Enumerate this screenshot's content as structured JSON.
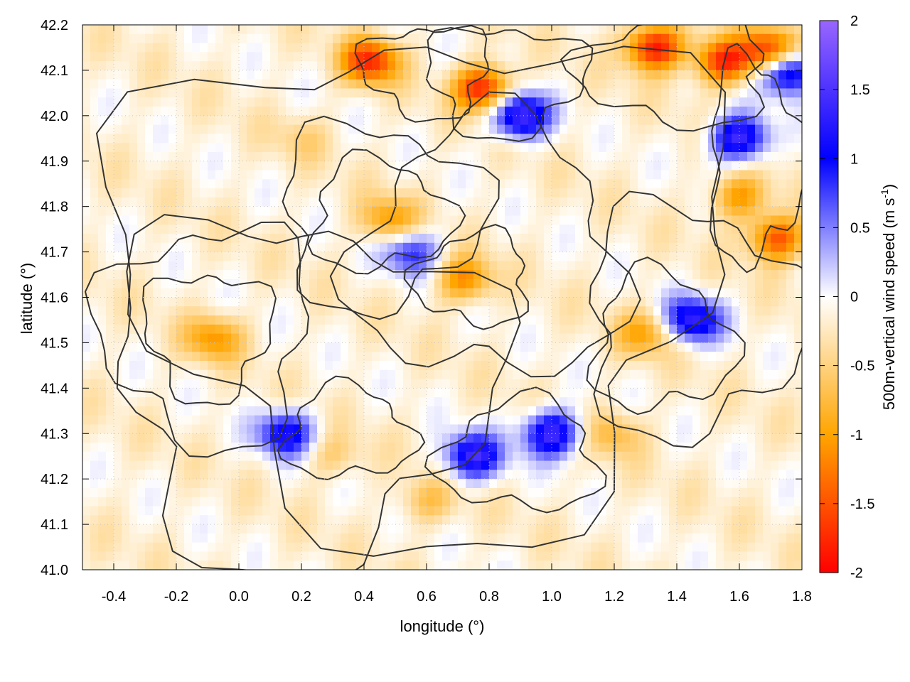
{
  "chart_data": {
    "type": "heatmap",
    "title": "",
    "xlabel": "longitude (°)",
    "ylabel": "latitude (°)",
    "colorbar_label_main": "500m-vertical wind speed (m s",
    "colorbar_label_sup": "-1",
    "colorbar_label_end": ")",
    "xlim": [
      -0.5,
      1.8
    ],
    "ylim": [
      41.0,
      42.2
    ],
    "clim": [
      -2,
      2
    ],
    "x_ticks": [
      -0.4,
      -0.2,
      0.0,
      0.2,
      0.4,
      0.6,
      0.8,
      1.0,
      1.2,
      1.4,
      1.6,
      1.8
    ],
    "x_tick_labels": [
      "-0.4",
      "-0.2",
      "0.0",
      "0.2",
      "0.4",
      "0.6",
      "0.8",
      "1.0",
      "1.2",
      "1.4",
      "1.6",
      "1.8"
    ],
    "y_ticks": [
      41.0,
      41.1,
      41.2,
      41.3,
      41.4,
      41.5,
      41.6,
      41.7,
      41.8,
      41.9,
      42.0,
      42.1,
      42.2
    ],
    "y_tick_labels": [
      "41.0",
      "41.1",
      "41.2",
      "41.3",
      "41.4",
      "41.5",
      "41.6",
      "41.7",
      "41.8",
      "41.9",
      "42.0",
      "42.1",
      "42.2"
    ],
    "colorbar_ticks": [
      2,
      1.5,
      1,
      0.5,
      0,
      -0.5,
      -1,
      -1.5,
      -2
    ],
    "colorbar_tick_labels": [
      "2",
      "1.5",
      "1",
      "0.5",
      "0",
      "-0.5",
      "-1",
      "-1.5",
      "-2"
    ],
    "colormap": [
      {
        "value": -2.0,
        "color": "#ff0000"
      },
      {
        "value": -1.0,
        "color": "#ffa500"
      },
      {
        "value": 0.0,
        "color": "#ffffff"
      },
      {
        "value": 1.0,
        "color": "#0000ff"
      },
      {
        "value": 2.0,
        "color": "#9966ff"
      }
    ],
    "grid": true,
    "contour_color": "#333333",
    "features": [
      {
        "lon": 0.48,
        "lat": 41.77,
        "w": -0.9
      },
      {
        "lon": 0.72,
        "lat": 41.64,
        "w": -1.0
      },
      {
        "lon": -0.08,
        "lat": 41.51,
        "w": -0.9
      },
      {
        "lon": 0.2,
        "lat": 41.95,
        "w": -0.3
      },
      {
        "lon": 1.3,
        "lat": 41.52,
        "w": -0.8
      },
      {
        "lon": 1.6,
        "lat": 41.82,
        "w": -0.9
      },
      {
        "lon": 1.72,
        "lat": 41.73,
        "w": -1.4
      },
      {
        "lon": 0.42,
        "lat": 42.12,
        "w": -1.6
      },
      {
        "lon": 0.78,
        "lat": 42.06,
        "w": -1.7
      },
      {
        "lon": 1.33,
        "lat": 42.15,
        "w": -1.8
      },
      {
        "lon": 1.55,
        "lat": 42.12,
        "w": -1.6
      },
      {
        "lon": 1.7,
        "lat": 42.14,
        "w": -1.7
      },
      {
        "lon": 1.2,
        "lat": 41.3,
        "w": -0.6
      },
      {
        "lon": 0.6,
        "lat": 41.15,
        "w": -0.5
      },
      {
        "lon": 0.3,
        "lat": 41.25,
        "w": -0.4
      },
      {
        "lon": 1.0,
        "lat": 41.3,
        "w": 1.6
      },
      {
        "lon": 0.75,
        "lat": 41.25,
        "w": 1.5
      },
      {
        "lon": 0.15,
        "lat": 41.3,
        "w": 1.3
      },
      {
        "lon": 1.45,
        "lat": 41.55,
        "w": 1.5
      },
      {
        "lon": 1.6,
        "lat": 41.95,
        "w": 1.6
      },
      {
        "lon": 0.9,
        "lat": 42.0,
        "w": 1.7
      },
      {
        "lon": 0.55,
        "lat": 41.7,
        "w": 1.0
      },
      {
        "lon": 1.75,
        "lat": 42.1,
        "w": 1.8
      }
    ]
  }
}
